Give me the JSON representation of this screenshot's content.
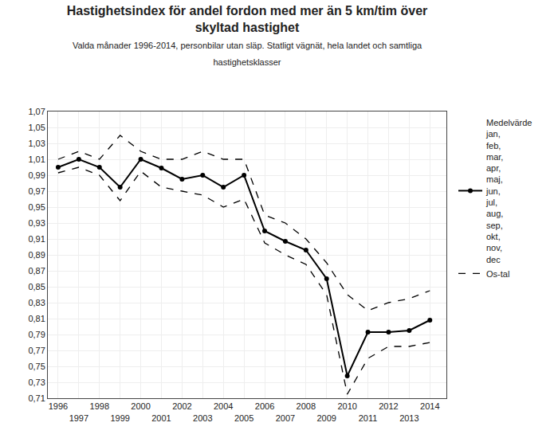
{
  "chart_data": {
    "type": "line",
    "title": "Hastighetsindex för andel fordon med mer än 5 km/tim över\nskyltad hastighet",
    "subtitle": "Valda månader 1996-2014, personbilar utan släp. Statligt vägnät, hela landet och samtliga\nhastighetsklasser",
    "x": [
      1996,
      1997,
      1998,
      1999,
      2000,
      2001,
      2002,
      2003,
      2004,
      2005,
      2006,
      2007,
      2008,
      2009,
      2010,
      2011,
      2012,
      2013,
      2014
    ],
    "series": [
      {
        "name": "Os-tal",
        "color": "#000000",
        "line_style": "dashed",
        "values": [
          1.01,
          1.02,
          1.01,
          1.04,
          1.02,
          1.01,
          1.01,
          1.02,
          1.01,
          1.01,
          0.94,
          0.93,
          0.91,
          0.88,
          0.84,
          0.82,
          0.83,
          0.835,
          0.845
        ]
      },
      {
        "name": "Os-tal",
        "color": "#000000",
        "line_style": "dashed",
        "values": [
          0.993,
          1.0,
          0.99,
          0.958,
          0.995,
          0.975,
          0.97,
          0.965,
          0.95,
          0.96,
          0.905,
          0.89,
          0.878,
          0.84,
          0.715,
          0.76,
          0.775,
          0.775,
          0.78
        ]
      },
      {
        "name": "Medelvärde\njan,\nfeb,\nmar,\napr,\nmaj,\njun,\njul,\naug,\nsep,\nokt,\nnov,\ndec",
        "color": "#000000",
        "line_style": "solid",
        "marker": "circle",
        "values": [
          1.0,
          1.01,
          1.0,
          0.975,
          1.01,
          0.999,
          0.985,
          0.99,
          0.975,
          0.99,
          0.92,
          0.907,
          0.896,
          0.86,
          0.738,
          0.793,
          0.793,
          0.795,
          0.808
        ]
      }
    ],
    "xlim": [
      1995.5,
      2014.8
    ],
    "xticks": [
      1996,
      1997,
      1998,
      1999,
      2000,
      2001,
      2002,
      2003,
      2004,
      2005,
      2006,
      2007,
      2008,
      2009,
      2010,
      2011,
      2012,
      2013,
      2014
    ],
    "ylim": [
      0.71,
      1.07
    ],
    "yticks": [
      {
        "value": 0.71,
        "label": "0,71"
      },
      {
        "value": 0.73,
        "label": "0,73"
      },
      {
        "value": 0.75,
        "label": "0,75"
      },
      {
        "value": 0.77,
        "label": "0,77"
      },
      {
        "value": 0.79,
        "label": "0,79"
      },
      {
        "value": 0.81,
        "label": "0,81"
      },
      {
        "value": 0.83,
        "label": "0,83"
      },
      {
        "value": 0.85,
        "label": "0,85"
      },
      {
        "value": 0.87,
        "label": "0,87"
      },
      {
        "value": 0.89,
        "label": "0,89"
      },
      {
        "value": 0.91,
        "label": "0,91"
      },
      {
        "value": 0.93,
        "label": "0,93"
      },
      {
        "value": 0.95,
        "label": "0,95"
      },
      {
        "value": 0.97,
        "label": "0,97"
      },
      {
        "value": 0.99,
        "label": "0,99"
      },
      {
        "value": 1.01,
        "label": "1,01"
      },
      {
        "value": 1.03,
        "label": "1,03"
      },
      {
        "value": 1.05,
        "label": "1,05"
      },
      {
        "value": 1.07,
        "label": "1,07"
      }
    ],
    "grid": true,
    "legend": "right"
  }
}
